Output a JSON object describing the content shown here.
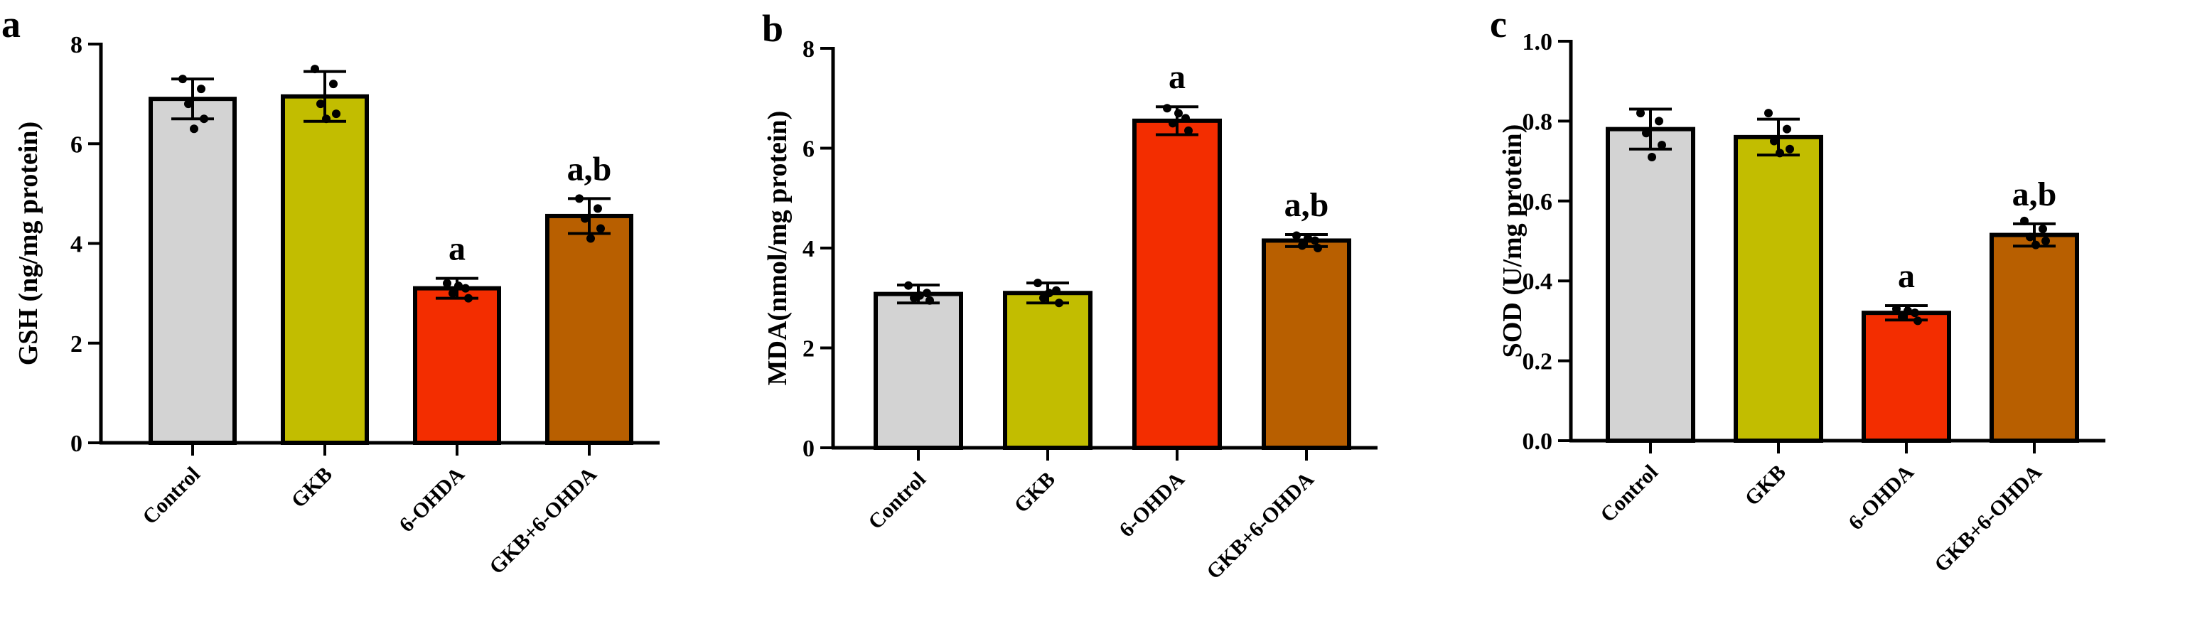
{
  "colors": {
    "Control": "#d3d3d3",
    "GKB": "#c2bd00",
    "6-OHDA": "#f32d00",
    "GKB+6-OHDA": "#b85f00"
  },
  "chart_data": [
    {
      "type": "bar",
      "panel": "a",
      "ylabel": "GSH (ng/mg protein)",
      "categories": [
        "Control",
        "GKB",
        "6-OHDA",
        "GKB+6-OHDA"
      ],
      "values": [
        6.9,
        6.95,
        3.1,
        4.55
      ],
      "errors": [
        0.4,
        0.5,
        0.2,
        0.35
      ],
      "points": [
        [
          7.3,
          7.1,
          6.8,
          6.5,
          6.3
        ],
        [
          7.5,
          7.2,
          6.8,
          6.6,
          6.5
        ],
        [
          3.2,
          3.1,
          3.0,
          2.9,
          3.15
        ],
        [
          4.9,
          4.7,
          4.5,
          4.3,
          4.1
        ]
      ],
      "annotations": [
        "",
        "",
        "a",
        "a,b"
      ],
      "ylim": [
        0,
        8
      ],
      "yticks": [
        "0",
        "2",
        "4",
        "6",
        "8"
      ]
    },
    {
      "type": "bar",
      "panel": "b",
      "ylabel": "MDA(nmol/mg protein)",
      "categories": [
        "Control",
        "GKB",
        "6-OHDA",
        "GKB+6-OHDA"
      ],
      "values": [
        3.08,
        3.1,
        6.55,
        4.15
      ],
      "errors": [
        0.18,
        0.2,
        0.28,
        0.12
      ],
      "points": [
        [
          3.25,
          3.1,
          3.0,
          2.95,
          3.05
        ],
        [
          3.3,
          3.15,
          3.0,
          2.9,
          3.1
        ],
        [
          6.8,
          6.6,
          6.5,
          6.35,
          6.7
        ],
        [
          4.25,
          4.15,
          4.05,
          4.0,
          4.2
        ]
      ],
      "annotations": [
        "",
        "",
        "a",
        "a,b"
      ],
      "ylim": [
        0,
        8
      ],
      "yticks": [
        "0",
        "2",
        "4",
        "6",
        "8"
      ]
    },
    {
      "type": "bar",
      "panel": "c",
      "ylabel": "SOD (U/mg protein)",
      "categories": [
        "Control",
        "GKB",
        "6-OHDA",
        "GKB+6-OHDA"
      ],
      "values": [
        0.78,
        0.76,
        0.32,
        0.515
      ],
      "errors": [
        0.05,
        0.045,
        0.018,
        0.028
      ],
      "points": [
        [
          0.82,
          0.8,
          0.77,
          0.74,
          0.71
        ],
        [
          0.82,
          0.78,
          0.75,
          0.73,
          0.72
        ],
        [
          0.33,
          0.32,
          0.31,
          0.3,
          0.325
        ],
        [
          0.55,
          0.53,
          0.51,
          0.5,
          0.49
        ]
      ],
      "annotations": [
        "",
        "",
        "a",
        "a,b"
      ],
      "ylim": [
        0,
        1.0
      ],
      "yticks": [
        "0.0",
        "0.2",
        "0.4",
        "0.6",
        "0.8",
        "1.0"
      ]
    }
  ]
}
